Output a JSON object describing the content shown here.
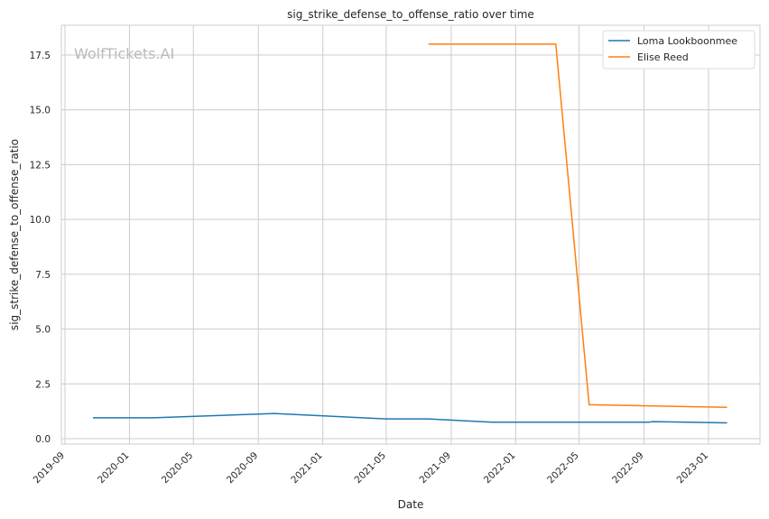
{
  "chart_data": {
    "type": "line",
    "title": "sig_strike_defense_to_offense_ratio over time",
    "xlabel": "Date",
    "ylabel": "sig_strike_defense_to_offense_ratio",
    "watermark": "WolfTickets.AI",
    "xlim": [
      "2019-08-15",
      "2023-03-01"
    ],
    "ylim": [
      -0.2,
      18.8
    ],
    "grid": true,
    "legend": "top-right",
    "x_ticks": [
      "2019-09",
      "2020-01",
      "2020-05",
      "2020-09",
      "2021-01",
      "2021-05",
      "2021-09",
      "2022-01",
      "2022-05",
      "2022-09",
      "2023-01"
    ],
    "y_ticks": [
      0.0,
      2.5,
      5.0,
      7.5,
      10.0,
      12.5,
      15.0,
      17.5
    ],
    "series": [
      {
        "name": "Loma Lookboonmee",
        "color": "#1f77b4",
        "x": [
          "2019-10-24",
          "2020-02-15",
          "2020-10-01",
          "2021-05-01",
          "2021-07-20",
          "2021-11-18",
          "2022-09-10",
          "2022-09-16",
          "2023-02-05"
        ],
        "y": [
          0.95,
          0.95,
          1.15,
          0.9,
          0.9,
          0.75,
          0.75,
          0.78,
          0.72
        ]
      },
      {
        "name": "Elise Reed",
        "color": "#ff7f0e",
        "x": [
          "2021-07-20",
          "2022-03-18",
          "2022-05-20",
          "2023-02-05"
        ],
        "y": [
          18.0,
          18.0,
          1.55,
          1.43
        ]
      }
    ]
  }
}
